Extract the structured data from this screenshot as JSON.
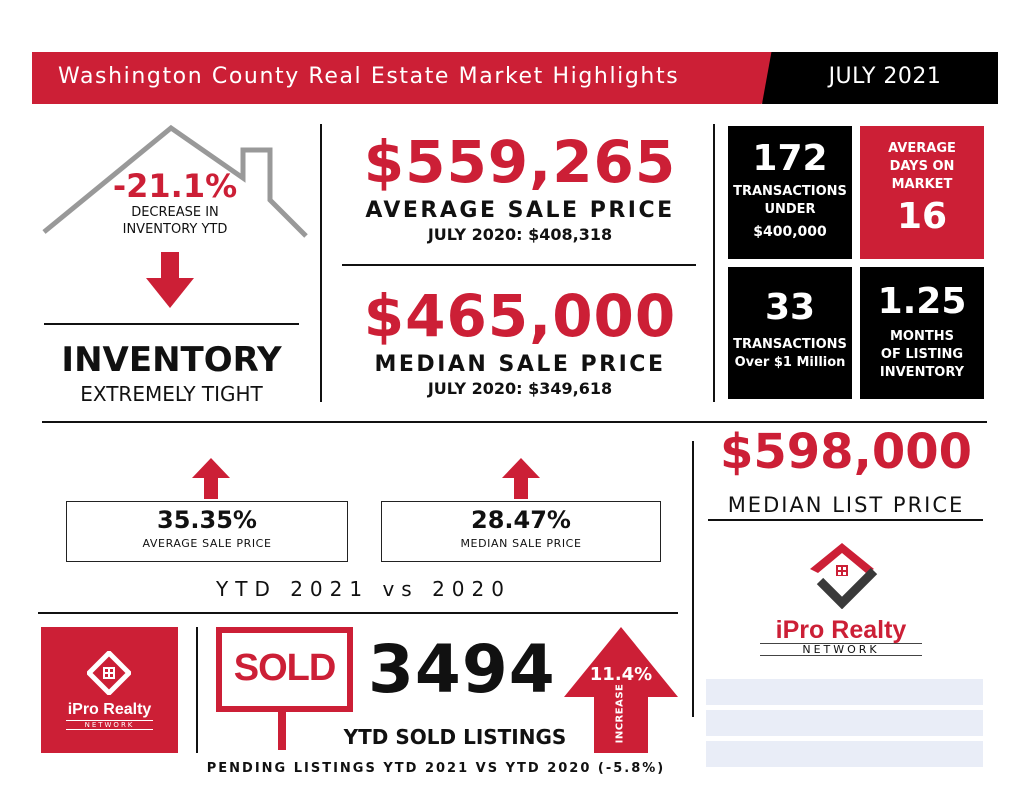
{
  "header": {
    "title": "Washington County Real Estate Market Highlights",
    "date": "JULY 2021"
  },
  "inventory": {
    "change": "-21.1%",
    "change_label_line1": "DECREASE IN",
    "change_label_line2": "INVENTORY YTD",
    "title": "INVENTORY",
    "subtitle": "EXTREMELY TIGHT"
  },
  "average_sale": {
    "value": "$559,265",
    "label": "AVERAGE SALE PRICE",
    "prior": "JULY 2020: $408,318"
  },
  "median_sale": {
    "value": "$465,000",
    "label": "MEDIAN SALE PRICE",
    "prior": "JULY 2020: $349,618"
  },
  "stat_boxes": {
    "under_400k": {
      "value": "172",
      "label_line1": "TRANSACTIONS",
      "label_line2": "UNDER",
      "label_line3": "$400,000"
    },
    "days_on_market": {
      "label_line1": "AVERAGE",
      "label_line2": "DAYS ON",
      "label_line3": "MARKET",
      "value": "16"
    },
    "over_1m": {
      "value": "33",
      "label_line1": "TRANSACTIONS",
      "label_line2": "Over $1 Million"
    },
    "months_inventory": {
      "value": "1.25",
      "label_line1": "MONTHS",
      "label_line2": "OF LISTING",
      "label_line3": "INVENTORY"
    }
  },
  "ytd": {
    "average_change": "35.35%",
    "average_label": "AVERAGE SALE PRICE",
    "median_change": "28.47%",
    "median_label": "MEDIAN SALE PRICE",
    "caption": "YTD 2021 vs 2020"
  },
  "median_list": {
    "value": "$598,000",
    "label": "MEDIAN LIST PRICE"
  },
  "sold": {
    "sign_text": "SOLD",
    "count": "3494",
    "label": "YTD SOLD LISTINGS",
    "increase_pct": "11.4%",
    "increase_label": "INCREASE",
    "pending_note": "PENDING LISTINGS YTD 2021 VS YTD 2020 (-5.8%)"
  },
  "logo": {
    "name_i": "i",
    "name_pro": "Pro",
    "name_realty": "Realty",
    "tagline": "NETWORK"
  },
  "colors": {
    "accent": "#cc1f36",
    "dark": "#000000",
    "logo_gray": "#3a3a3a"
  }
}
